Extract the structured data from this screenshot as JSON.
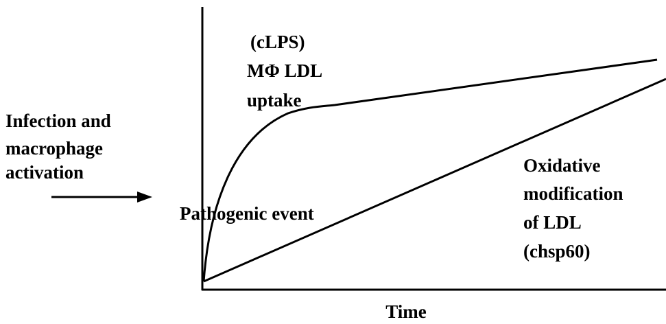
{
  "curve_label": [
    "(cLPS)",
    "MΦ LDL",
    "uptake"
  ],
  "input_label": [
    "Infection and",
    "macrophage",
    "activation"
  ],
  "origin_label": "Pathogenic event",
  "line_label": [
    "Oxidative",
    "modification",
    "of LDL",
    "(chsp60)"
  ],
  "x_axis_label": "Time"
}
